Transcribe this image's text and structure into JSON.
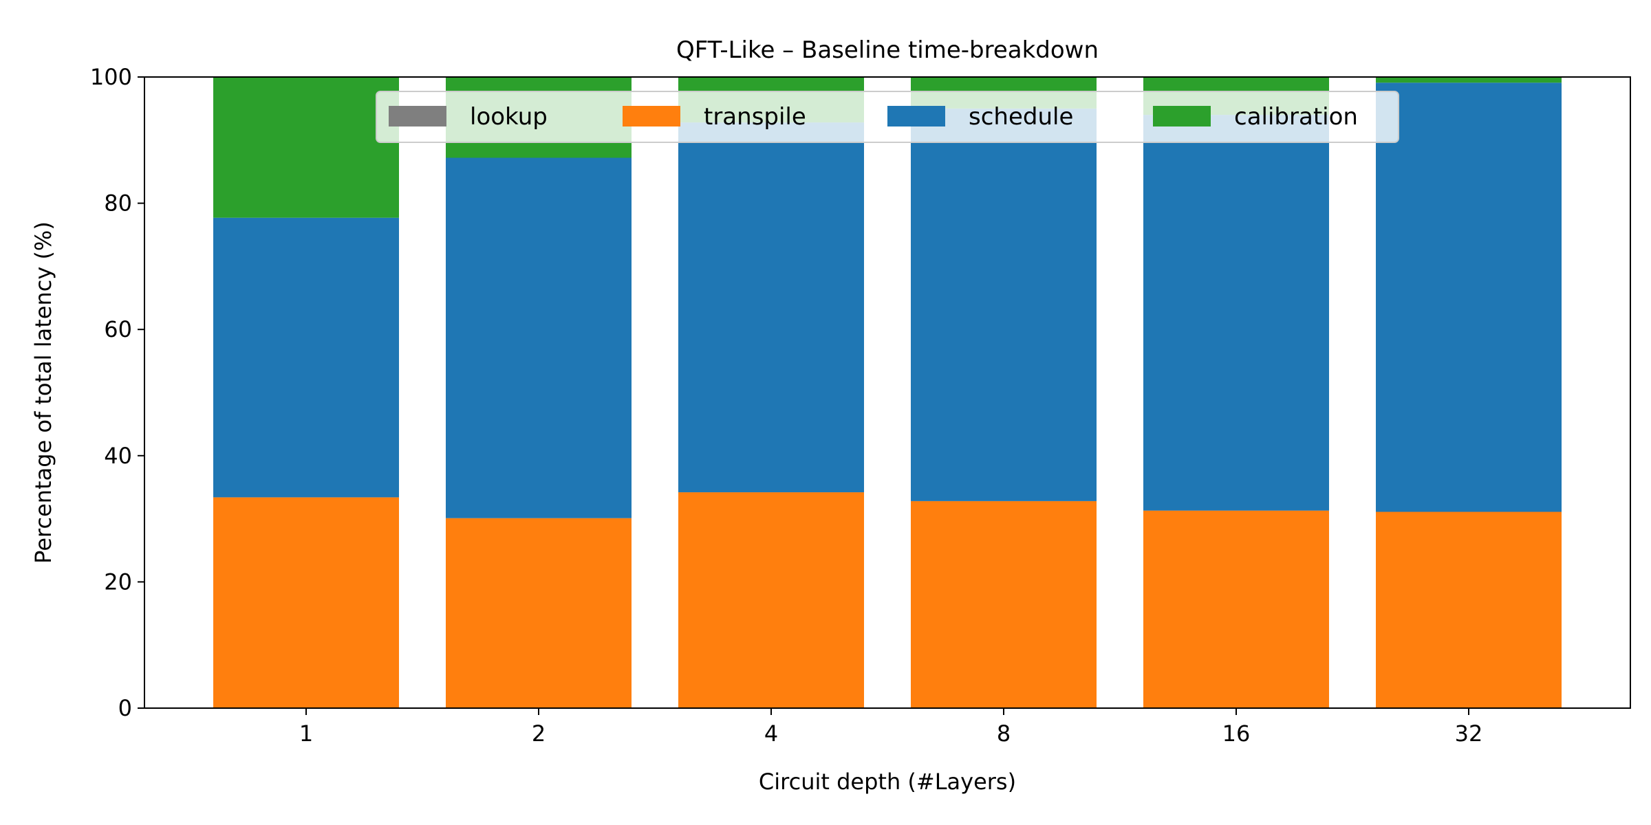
{
  "chart_data": {
    "type": "bar",
    "stacked": true,
    "title": "QFT-Like – Baseline time-breakdown",
    "xlabel": "Circuit depth (#Layers)",
    "ylabel": "Percentage of total latency (%)",
    "categories": [
      "1",
      "2",
      "4",
      "8",
      "16",
      "32"
    ],
    "ylim": [
      0,
      100
    ],
    "yticks": [
      0,
      20,
      40,
      60,
      80,
      100
    ],
    "grid": false,
    "legend_placement": "upper center",
    "series": [
      {
        "name": "lookup",
        "color": "#7f7f7f",
        "values": [
          0,
          0,
          0,
          0,
          0,
          0
        ]
      },
      {
        "name": "transpile",
        "color": "#ff7f0e",
        "values": [
          33.4,
          30.1,
          34.2,
          32.8,
          31.3,
          31.1
        ]
      },
      {
        "name": "schedule",
        "color": "#1f77b4",
        "values": [
          44.3,
          57.1,
          58.6,
          62.2,
          62.7,
          68.0
        ]
      },
      {
        "name": "calibration",
        "color": "#2ca02c",
        "values": [
          22.3,
          12.8,
          7.2,
          5.0,
          6.0,
          0.9
        ]
      }
    ]
  }
}
